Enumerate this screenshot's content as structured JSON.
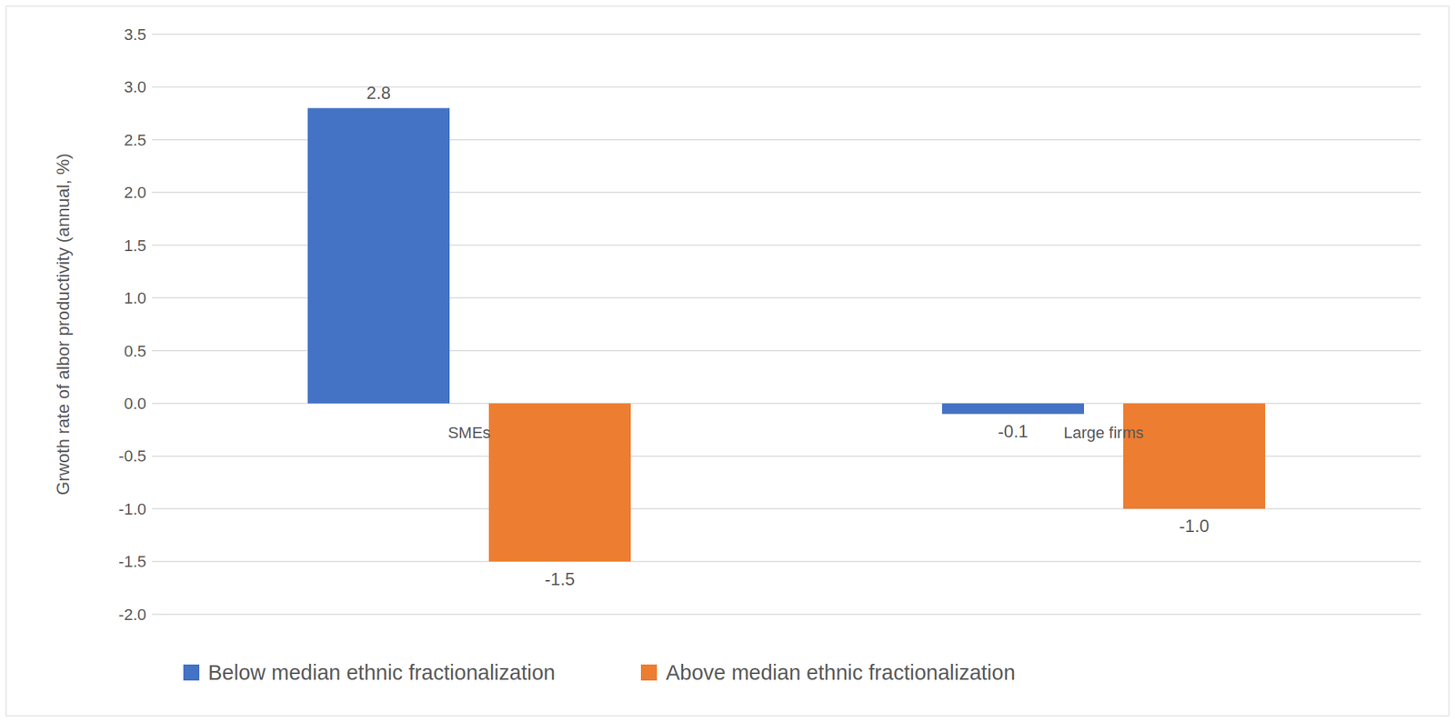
{
  "chart_data": {
    "type": "bar",
    "y_label": "Grwoth rate of albor productivity (annual, %)",
    "categories": [
      "SMEs",
      "Large firms"
    ],
    "series": [
      {
        "name": "Below median ethnic fractionalization",
        "color": "#4472c4",
        "values": [
          2.8,
          -0.1
        ],
        "value_labels": [
          "2.8",
          "-0.1"
        ]
      },
      {
        "name": "Above median ethnic fractionalization",
        "color": "#ed7d31",
        "values": [
          -1.5,
          -1.0
        ],
        "value_labels": [
          "-1.5",
          "-1.0"
        ]
      }
    ],
    "ylim": [
      -2,
      3.5
    ],
    "yticks": [
      {
        "value": -2,
        "label": "-2.0"
      },
      -1.5,
      {
        "value": -1,
        "label": "-1.0"
      },
      -0.5,
      {
        "value": 0,
        "label": "0.0"
      },
      0.5,
      {
        "value": 1,
        "label": "1.0"
      },
      1.5,
      {
        "value": 2,
        "label": "2.0"
      },
      2.5,
      {
        "value": 3,
        "label": "3.0"
      },
      3.5
    ],
    "grid": true,
    "legend": "bottom",
    "data_labels": true
  }
}
